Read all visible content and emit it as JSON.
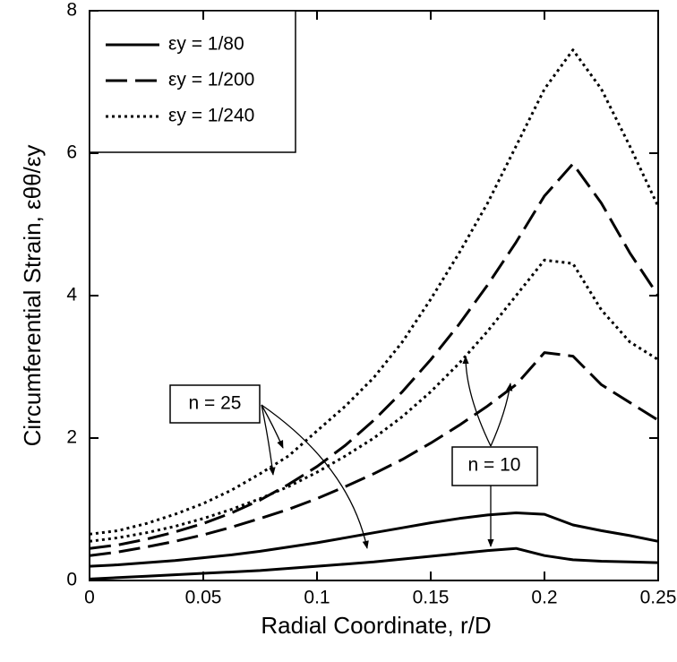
{
  "chart_data": {
    "type": "line",
    "xlabel": "Radial Coordinate, r/D",
    "ylabel": "Circumferential Strain,  εθθ/εy",
    "x": [
      0,
      0.0125,
      0.025,
      0.0375,
      0.05,
      0.0625,
      0.075,
      0.0875,
      0.1,
      0.1125,
      0.125,
      0.1375,
      0.15,
      0.1625,
      0.175,
      0.1875,
      0.2,
      0.2125,
      0.225,
      0.2375,
      0.25
    ],
    "series": [
      {
        "name": "εy = 1/80",
        "color": "#000000",
        "dash": "solid",
        "values": [
          0.2,
          0.22,
          0.25,
          0.28,
          0.32,
          0.36,
          0.41,
          0.47,
          0.53,
          0.6,
          0.67,
          0.74,
          0.81,
          0.87,
          0.92,
          0.95,
          0.93,
          0.78,
          0.7,
          0.63,
          0.55
        ],
        "values_n10": [
          0.02,
          0.04,
          0.06,
          0.08,
          0.1,
          0.12,
          0.14,
          0.17,
          0.2,
          0.23,
          0.26,
          0.3,
          0.34,
          0.38,
          0.42,
          0.45,
          0.35,
          0.29,
          0.27,
          0.26,
          0.25
        ]
      },
      {
        "name": "εy = 1/200",
        "color": "#000000",
        "dash": "dashed",
        "values": [
          0.45,
          0.5,
          0.58,
          0.68,
          0.8,
          0.95,
          1.13,
          1.35,
          1.6,
          1.9,
          2.25,
          2.65,
          3.1,
          3.6,
          4.15,
          4.75,
          5.4,
          5.85,
          5.3,
          4.6,
          4.0
        ],
        "values_n10": [
          0.35,
          0.4,
          0.47,
          0.55,
          0.64,
          0.75,
          0.87,
          1.0,
          1.15,
          1.32,
          1.5,
          1.7,
          1.93,
          2.18,
          2.45,
          2.75,
          3.2,
          3.15,
          2.75,
          2.5,
          2.25
        ]
      },
      {
        "name": "εy = 1/240",
        "color": "#000000",
        "dash": "dotted",
        "values": [
          0.65,
          0.7,
          0.8,
          0.93,
          1.08,
          1.27,
          1.5,
          1.75,
          2.1,
          2.45,
          2.85,
          3.35,
          3.95,
          4.6,
          5.3,
          6.1,
          6.9,
          7.45,
          6.9,
          6.1,
          5.25
        ],
        "values_n10": [
          0.55,
          0.6,
          0.67,
          0.76,
          0.87,
          1.0,
          1.15,
          1.32,
          1.52,
          1.75,
          2.0,
          2.3,
          2.65,
          3.05,
          3.5,
          4.0,
          4.5,
          4.45,
          3.8,
          3.35,
          3.1
        ]
      }
    ],
    "annotations": [
      "n = 25",
      "n = 10"
    ],
    "xlim": [
      0,
      0.25
    ],
    "xticks": [
      0,
      0.05,
      0.1,
      0.15,
      0.2,
      0.25
    ],
    "ylim": [
      0,
      8
    ],
    "yticks": [
      0,
      2,
      4,
      6,
      8
    ],
    "grid": false
  }
}
